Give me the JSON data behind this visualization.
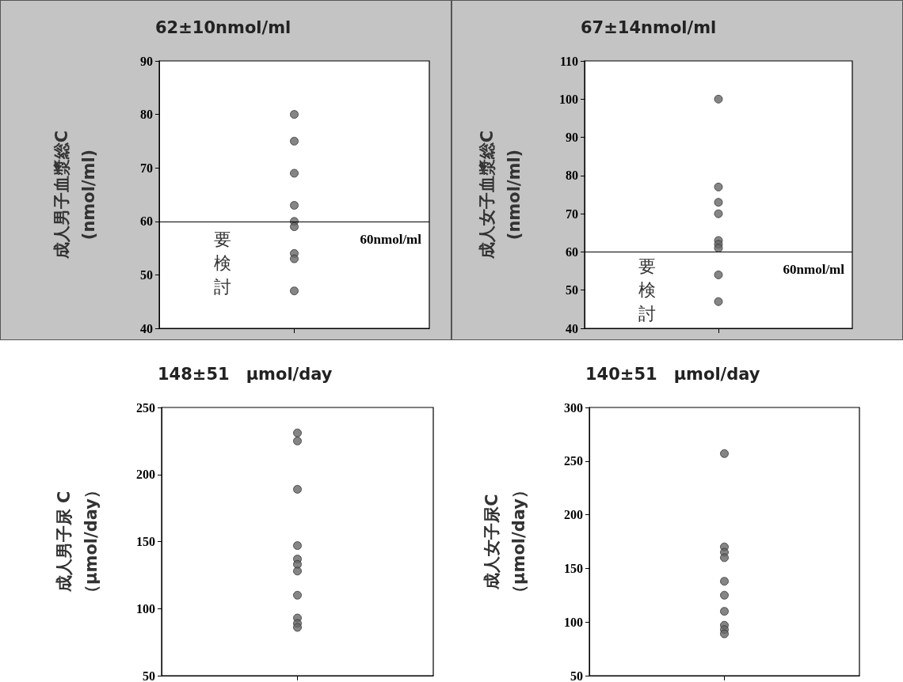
{
  "chart_data": [
    {
      "type": "scatter",
      "title": "62±10nmol/ml",
      "ylabel": "成人男子血漿総C\n(nmol/ml)",
      "marker": "circle",
      "grid": false,
      "categories": [
        null
      ],
      "series": [
        {
          "color": "#666666",
          "x": [
            null,
            null,
            null,
            null,
            null,
            null,
            null,
            null,
            null
          ],
          "values": [
            80,
            75,
            69,
            63,
            60,
            59,
            54,
            53,
            47
          ]
        }
      ],
      "ylim": [
        40,
        90
      ],
      "yticks": [
        40,
        50,
        60,
        70,
        80,
        90
      ],
      "ref_lines": [
        {
          "axis": "y",
          "value": 60,
          "label": "60nmol/ml",
          "color": "#000000"
        }
      ],
      "annotations": [
        "要検討"
      ]
    },
    {
      "type": "scatter",
      "title": "67±14nmol/ml",
      "ylabel": "成人女子血漿総C\n(nmol/ml)",
      "marker": "circle",
      "grid": false,
      "categories": [
        null
      ],
      "series": [
        {
          "color": "#666666",
          "x": [
            null,
            null,
            null,
            null,
            null,
            null,
            null,
            null,
            null
          ],
          "values": [
            100,
            77,
            73,
            70,
            63,
            62,
            61,
            54,
            47
          ]
        }
      ],
      "ylim": [
        40,
        110
      ],
      "yticks": [
        40,
        50,
        60,
        70,
        80,
        90,
        100,
        110
      ],
      "ref_lines": [
        {
          "axis": "y",
          "value": 60,
          "label": "60nmol/ml",
          "color": "#000000"
        }
      ],
      "annotations": [
        "要検討"
      ]
    },
    {
      "type": "scatter",
      "title": "148±51　μmol/day",
      "ylabel": "成人男子尿 C\n（μmol/day）",
      "marker": "circle",
      "grid": false,
      "categories": [
        null
      ],
      "series": [
        {
          "color": "#666666",
          "x": [
            null,
            null,
            null,
            null,
            null,
            null,
            null,
            null,
            null,
            null,
            null
          ],
          "values": [
            231,
            225,
            189,
            147,
            137,
            133,
            128,
            110,
            93,
            89,
            86
          ]
        }
      ],
      "ylim": [
        50,
        250
      ],
      "yticks": [
        50,
        100,
        150,
        200,
        250
      ]
    },
    {
      "type": "scatter",
      "title": "140±51　μmol/day",
      "ylabel": "成人女子尿C\n（μmol/day）",
      "marker": "circle",
      "grid": false,
      "categories": [
        null
      ],
      "series": [
        {
          "color": "#666666",
          "x": [
            null,
            null,
            null,
            null,
            null,
            null,
            null,
            null,
            null,
            null
          ],
          "values": [
            257,
            170,
            165,
            160,
            138,
            125,
            110,
            97,
            93,
            89
          ]
        }
      ],
      "ylim": [
        50,
        300
      ],
      "yticks": [
        50,
        100,
        150,
        200,
        250,
        300
      ]
    }
  ]
}
